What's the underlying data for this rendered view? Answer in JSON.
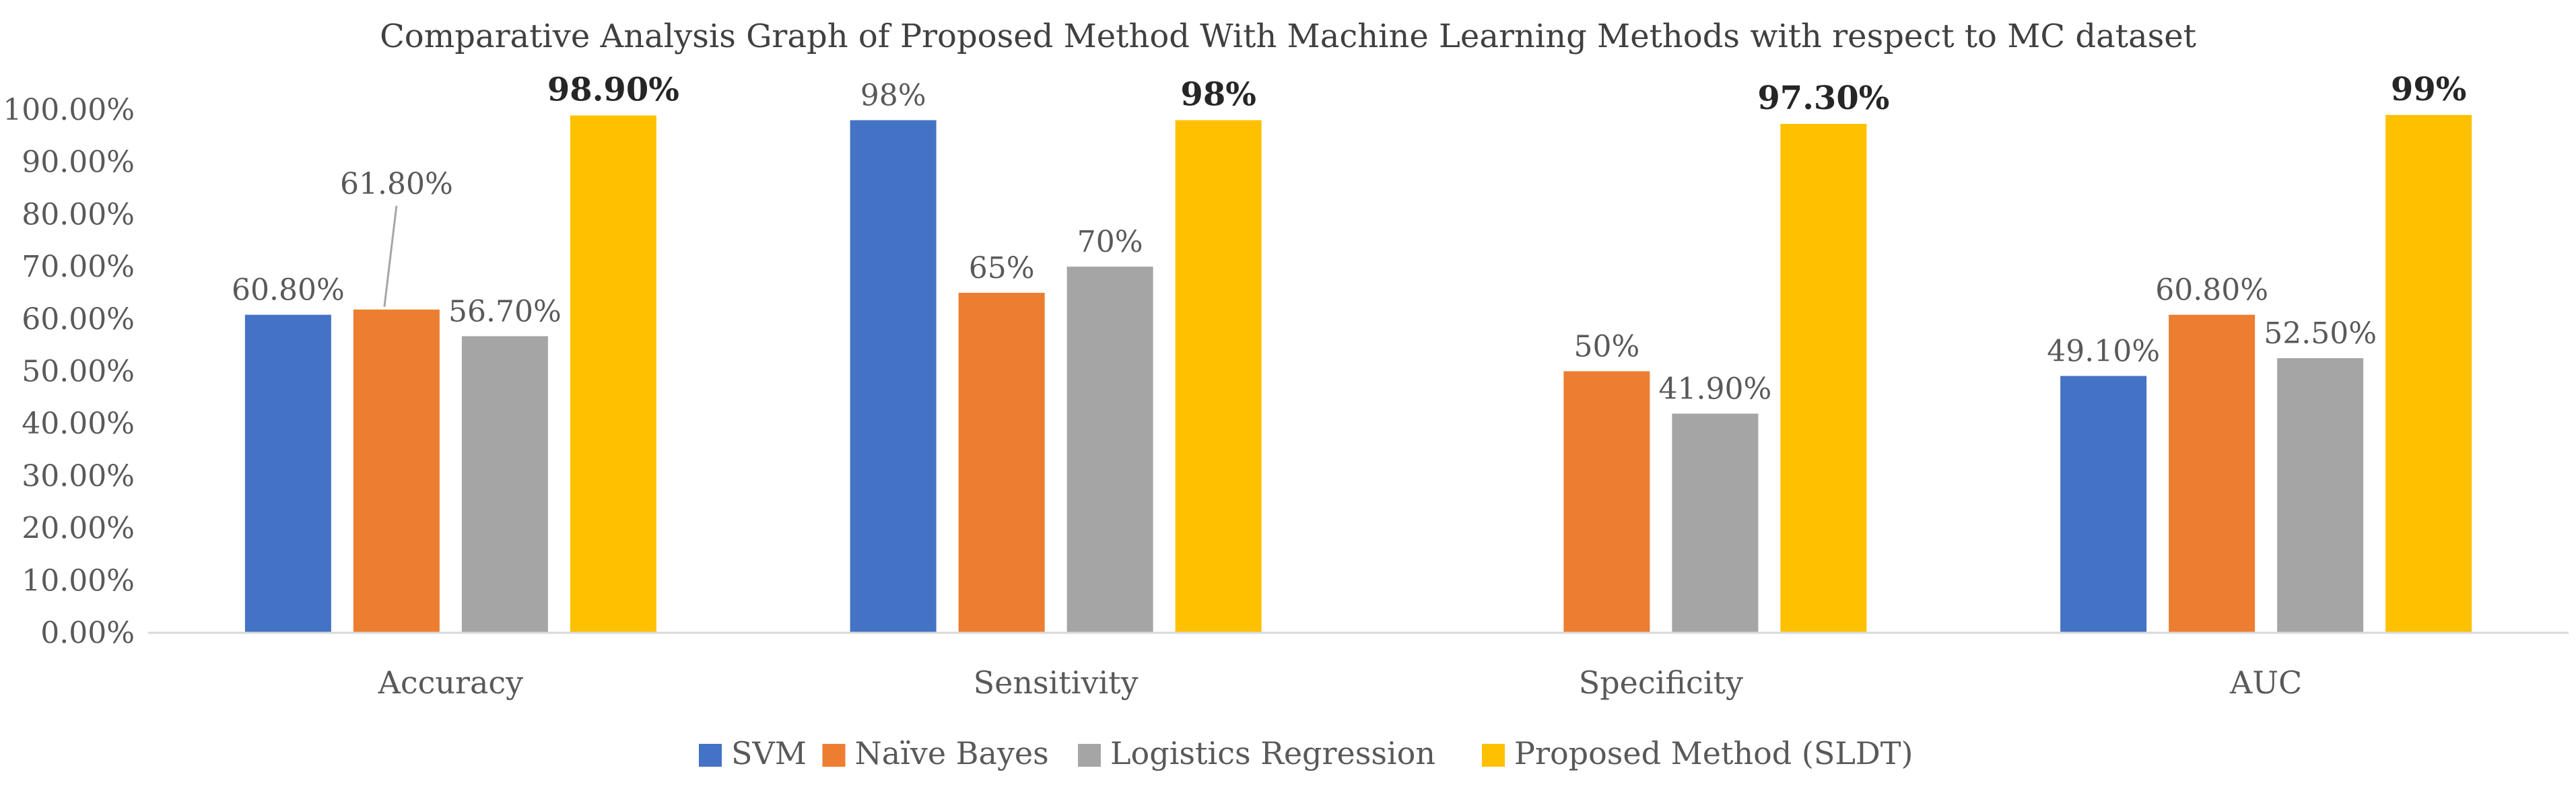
{
  "chart_data": {
    "type": "bar",
    "title": "Comparative Analysis Graph of Proposed Method With Machine Learning  Methods with respect to MC dataset",
    "xlabel": "",
    "ylabel": "",
    "ylim": [
      0,
      100
    ],
    "yticks": [
      0,
      10,
      20,
      30,
      40,
      50,
      60,
      70,
      80,
      90,
      100
    ],
    "ytick_labels": [
      "0.00%",
      "10.00%",
      "20.00%",
      "30.00%",
      "40.00%",
      "50.00%",
      "60.00%",
      "70.00%",
      "80.00%",
      "90.00%",
      "100.00%"
    ],
    "grid": false,
    "legend_position": "bottom",
    "categories": [
      "Accuracy",
      "Sensitivity",
      "Specificity",
      "AUC"
    ],
    "series": [
      {
        "name": "SVM",
        "color": "#4472C4",
        "values": [
          60.8,
          98,
          0,
          49.1
        ],
        "labels": [
          "60.80%",
          "98%",
          "",
          "49.10%"
        ]
      },
      {
        "name": "Naïve Bayes",
        "color": "#ED7D31",
        "values": [
          61.8,
          65,
          50,
          60.8
        ],
        "labels": [
          "61.80%",
          "65%",
          "50%",
          "60.80%"
        ]
      },
      {
        "name": "Logistics Regression",
        "color": "#A5A5A5",
        "values": [
          56.7,
          70,
          41.9,
          52.5
        ],
        "labels": [
          "56.70%",
          "70%",
          "41.90%",
          "52.50%"
        ]
      },
      {
        "name": "Proposed Method (SLDT)",
        "color": "#FFC000",
        "values": [
          98.9,
          98,
          97.3,
          99
        ],
        "labels": [
          "98.90%",
          "98%",
          "97.30%",
          "99%"
        ],
        "bold_labels": true
      }
    ],
    "colors": {
      "axis": "#D9D9D9",
      "text": "#595959",
      "title": "#404040",
      "bold_label": "#262626"
    }
  }
}
